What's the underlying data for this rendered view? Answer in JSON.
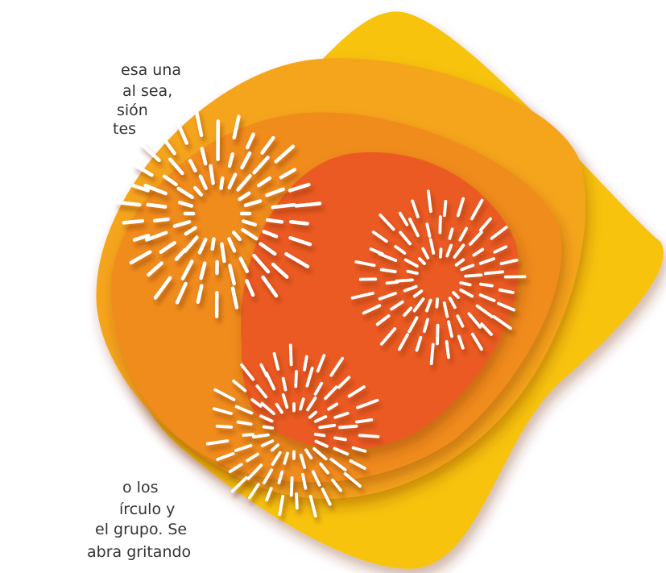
{
  "text_top": [
    "esa una",
    "al sea,",
    "sión",
    "tes"
  ],
  "text_bottom": [
    "o los",
    "írculo y",
    "el grupo. Se",
    "abra gritando"
  ]
}
